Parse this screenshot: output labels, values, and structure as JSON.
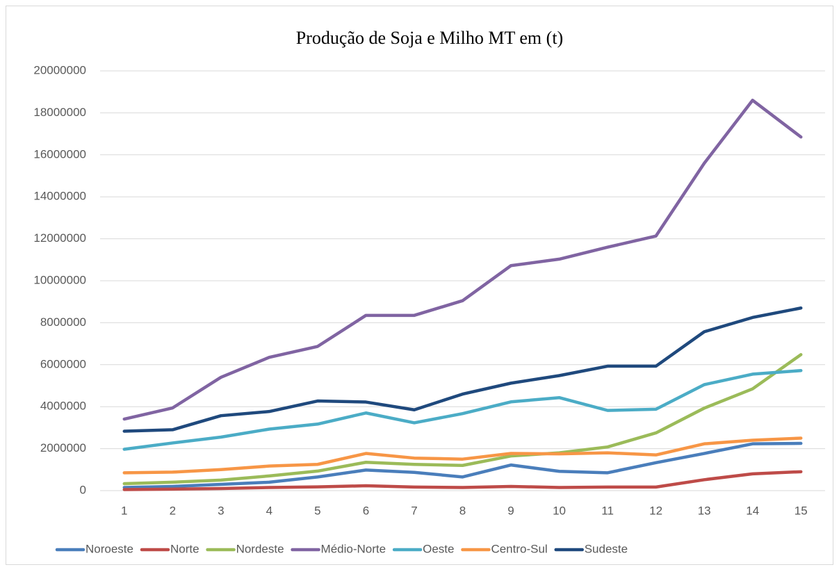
{
  "chart_data": {
    "type": "line",
    "title": "Produção de Soja e Milho MT em (t)",
    "categories": [
      "1",
      "2",
      "3",
      "4",
      "5",
      "6",
      "7",
      "8",
      "9",
      "10",
      "11",
      "12",
      "13",
      "14",
      "15"
    ],
    "ylim": [
      0,
      20000000
    ],
    "yticks": [
      0,
      2000000,
      4000000,
      6000000,
      8000000,
      10000000,
      12000000,
      14000000,
      16000000,
      18000000,
      20000000
    ],
    "grid": true,
    "legend": "bottom",
    "series": [
      {
        "name": "Noroeste",
        "color": "#4a7ebb",
        "values": [
          150000,
          200000,
          300000,
          400000,
          650000,
          980000,
          870000,
          650000,
          1220000,
          920000,
          850000,
          1330000,
          1770000,
          2230000,
          2250000
        ]
      },
      {
        "name": "Norte",
        "color": "#be4b48",
        "values": [
          50000,
          70000,
          100000,
          150000,
          180000,
          230000,
          170000,
          150000,
          200000,
          150000,
          170000,
          170000,
          520000,
          800000,
          900000
        ]
      },
      {
        "name": "Nordeste",
        "color": "#9bbb59",
        "values": [
          330000,
          400000,
          500000,
          700000,
          930000,
          1350000,
          1250000,
          1200000,
          1650000,
          1800000,
          2080000,
          2750000,
          3930000,
          4850000,
          6480000
        ]
      },
      {
        "name": "Médio-Norte",
        "color": "#8064a2",
        "values": [
          3410000,
          3940000,
          5400000,
          6350000,
          6870000,
          8350000,
          8350000,
          9050000,
          10720000,
          11030000,
          11600000,
          12130000,
          15600000,
          18600000,
          16850000
        ]
      },
      {
        "name": "Oeste",
        "color": "#4bacc6",
        "values": [
          1970000,
          2270000,
          2550000,
          2930000,
          3170000,
          3700000,
          3230000,
          3670000,
          4230000,
          4430000,
          3820000,
          3880000,
          5050000,
          5550000,
          5720000
        ]
      },
      {
        "name": "Centro-Sul",
        "color": "#f79646",
        "values": [
          850000,
          880000,
          1000000,
          1170000,
          1250000,
          1770000,
          1550000,
          1500000,
          1770000,
          1750000,
          1800000,
          1700000,
          2230000,
          2400000,
          2500000
        ]
      },
      {
        "name": "Sudeste",
        "color": "#1f497d",
        "values": [
          2830000,
          2900000,
          3570000,
          3770000,
          4270000,
          4220000,
          3850000,
          4600000,
          5120000,
          5480000,
          5930000,
          5930000,
          7570000,
          8250000,
          8700000
        ]
      }
    ]
  }
}
